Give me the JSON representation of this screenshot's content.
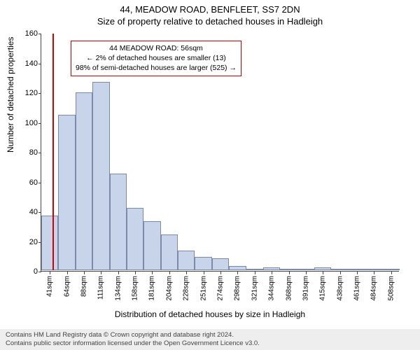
{
  "title": {
    "line1": "44, MEADOW ROAD, BENFLEET, SS7 2DN",
    "line2": "Size of property relative to detached houses in Hadleigh"
  },
  "ylabel": "Number of detached properties",
  "xlabel": "Distribution of detached houses by size in Hadleigh",
  "chart": {
    "type": "histogram",
    "ymax": 160,
    "ytick_step": 20,
    "bar_fill": "#c8d4ea",
    "bar_stroke": "#7a8aa8",
    "background": "#ffffff",
    "categories": [
      "41sqm",
      "64sqm",
      "88sqm",
      "111sqm",
      "134sqm",
      "158sqm",
      "181sqm",
      "204sqm",
      "228sqm",
      "251sqm",
      "274sqm",
      "298sqm",
      "321sqm",
      "344sqm",
      "368sqm",
      "391sqm",
      "415sqm",
      "438sqm",
      "461sqm",
      "484sqm",
      "508sqm"
    ],
    "values": [
      37,
      105,
      120,
      127,
      65,
      42,
      33,
      24,
      13,
      9,
      8,
      3,
      1,
      2,
      0,
      1,
      2,
      1,
      1,
      1,
      1
    ],
    "marker": {
      "color": "#d40000",
      "category_index": 0,
      "position_in_bar": 0.65
    },
    "annotation": {
      "border_color": "#c00000",
      "lines": [
        "44 MEADOW ROAD: 56sqm",
        "← 2% of detached houses are smaller (13)",
        "98% of semi-detached houses are larger (525) →"
      ]
    }
  },
  "footer": {
    "line1": "Contains HM Land Registry data © Crown copyright and database right 2024.",
    "line2": "Contains public sector information licensed under the Open Government Licence v3.0."
  }
}
